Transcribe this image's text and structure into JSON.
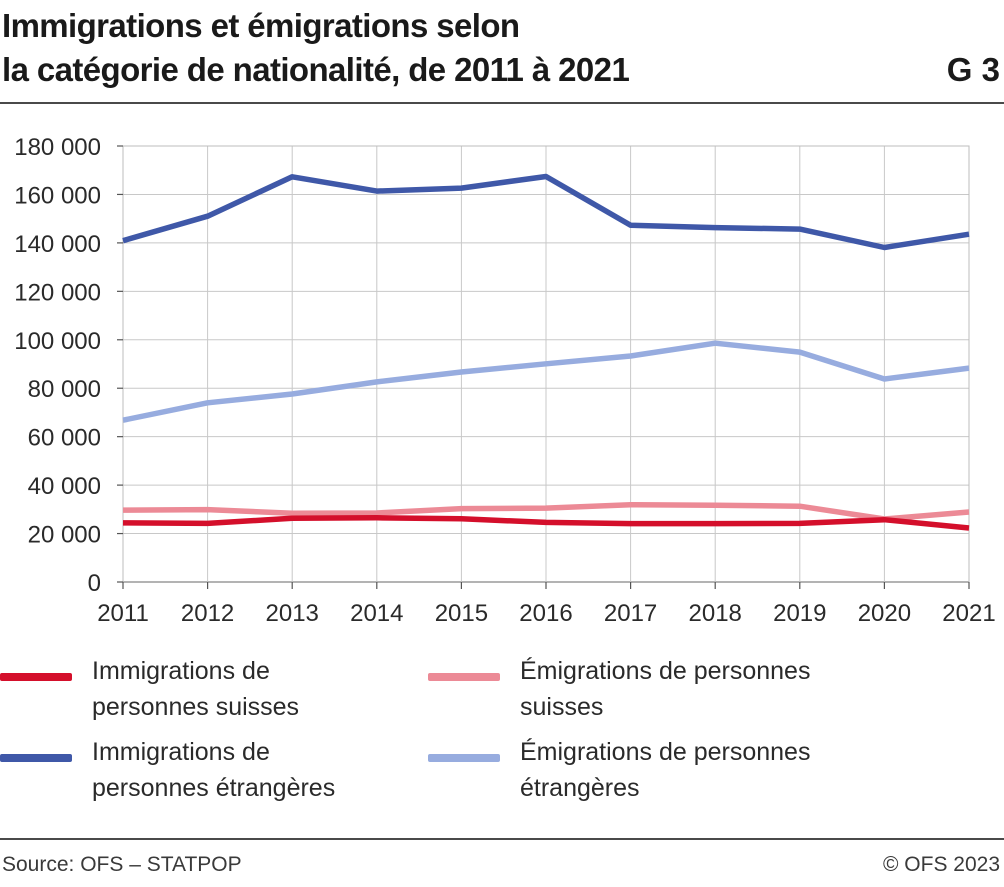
{
  "header": {
    "title_line1": "Immigrations et émigrations selon",
    "title_line2": "la catégorie de nationalité, de 2011 à 2021",
    "figure_number": "G 3"
  },
  "footer": {
    "source": "Source: OFS – STATPOP",
    "copyright": "© OFS 2023"
  },
  "chart_data": {
    "type": "line",
    "title": "Immigrations et émigrations selon la catégorie de nationalité, de 2011 à 2021",
    "xlabel": "",
    "ylabel": "",
    "x": [
      2011,
      2012,
      2013,
      2014,
      2015,
      2016,
      2017,
      2018,
      2019,
      2020,
      2021
    ],
    "ylim": [
      0,
      180000
    ],
    "yticks": [
      0,
      20000,
      40000,
      60000,
      80000,
      100000,
      120000,
      140000,
      160000,
      180000
    ],
    "ytick_labels": [
      "0",
      "20 000",
      "40 000",
      "60 000",
      "80 000",
      "100 000",
      "120 000",
      "140 000",
      "160 000",
      "180 000"
    ],
    "grid": true,
    "legend_position": "bottom",
    "series": [
      {
        "name": "Immigrations de personnes suisses",
        "color": "#d40f2b",
        "values": [
          24400,
          24200,
          26300,
          26500,
          26100,
          24600,
          24100,
          24100,
          24200,
          25700,
          22300
        ]
      },
      {
        "name": "Émigrations de personnes suisses",
        "color": "#ec8a96",
        "values": [
          29700,
          29900,
          28400,
          28500,
          30300,
          30500,
          31900,
          31700,
          31300,
          26000,
          28900
        ]
      },
      {
        "name": "Immigrations de personnes étrangères",
        "color": "#3f58a8",
        "values": [
          140900,
          151000,
          167300,
          161400,
          162600,
          167400,
          147300,
          146300,
          145700,
          138100,
          143600
        ]
      },
      {
        "name": "Émigrations de personnes étrangères",
        "color": "#97acdf",
        "values": [
          66800,
          74000,
          77600,
          82600,
          86700,
          90100,
          93300,
          98600,
          94900,
          83800,
          88300
        ]
      }
    ]
  }
}
